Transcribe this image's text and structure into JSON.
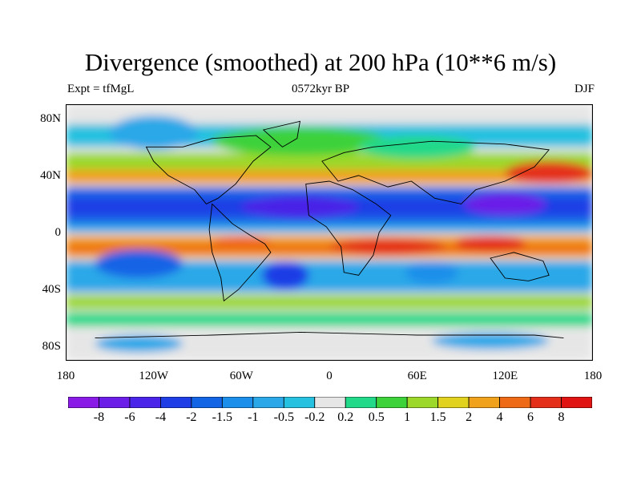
{
  "title": "Divergence (smoothed) at 200 hPa (10**6 m/s)",
  "left_annotation": "Expt = tfMgL",
  "center_annotation": "0572kyr BP",
  "right_annotation": "DJF",
  "chart_data": {
    "type": "heatmap",
    "title": "Divergence (smoothed) at 200 hPa (10**6 m/s)",
    "x_ticks": [
      "180",
      "120W",
      "60W",
      "0",
      "60E",
      "120E",
      "180"
    ],
    "y_ticks": [
      "80N",
      "40N",
      "0",
      "40S",
      "80S"
    ],
    "xlim": [
      -180,
      180
    ],
    "ylim": [
      -90,
      90
    ],
    "colorbar": {
      "labels": [
        "-8",
        "-6",
        "-4",
        "-2",
        "-1.5",
        "-1",
        "-0.5",
        "-0.2",
        "0.2",
        "0.5",
        "1",
        "1.5",
        "2",
        "4",
        "6",
        "8"
      ],
      "colors": [
        "#8a1ae6",
        "#6a1ee8",
        "#4a24e8",
        "#1f3ee6",
        "#1464e6",
        "#1c8fea",
        "#2aa8e8",
        "#26c1e0",
        "#e6e6e6",
        "#22d98a",
        "#3ed23a",
        "#9cd82a",
        "#e0d21e",
        "#f0a21c",
        "#ef6a16",
        "#e4301a",
        "#e01412"
      ]
    }
  }
}
